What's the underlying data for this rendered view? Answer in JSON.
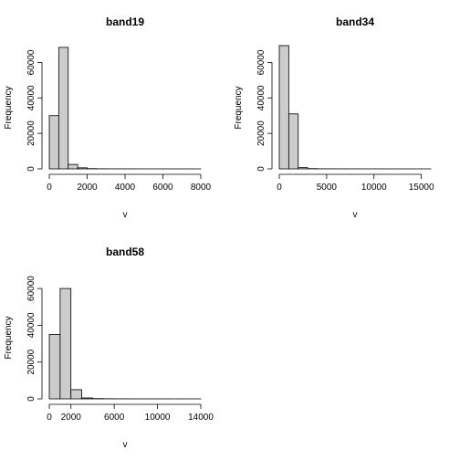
{
  "chart_data": [
    {
      "type": "bar",
      "title": "band19",
      "xlabel": "v",
      "ylabel": "Frequency",
      "bin_edges": [
        0,
        500,
        1000,
        1500,
        2000,
        2500,
        3000,
        3500,
        4000,
        4500,
        5000,
        5500,
        6000,
        6500,
        7000,
        7500,
        8000
      ],
      "values": [
        30000,
        68500,
        2500,
        600,
        150,
        60,
        40,
        30,
        20,
        15,
        10,
        8,
        6,
        5,
        4,
        3
      ],
      "xticks": [
        0,
        2000,
        4000,
        6000,
        8000
      ],
      "yticks": [
        0,
        20000,
        40000,
        60000
      ],
      "xlim": [
        0,
        8000
      ],
      "ylim": [
        0,
        70000
      ],
      "grid": false
    },
    {
      "type": "bar",
      "title": "band34",
      "xlabel": "v",
      "ylabel": "Frequency",
      "bin_edges": [
        0,
        1000,
        2000,
        3000,
        4000,
        5000,
        6000,
        7000,
        8000,
        9000,
        10000,
        11000,
        12000,
        13000,
        14000,
        15000,
        16000
      ],
      "values": [
        69500,
        31000,
        700,
        150,
        60,
        40,
        30,
        20,
        15,
        10,
        8,
        6,
        5,
        4,
        3,
        2
      ],
      "xticks": [
        0,
        5000,
        10000,
        15000
      ],
      "yticks": [
        0,
        20000,
        40000,
        60000
      ],
      "xlim": [
        0,
        16000
      ],
      "ylim": [
        0,
        70000
      ],
      "grid": false
    },
    {
      "type": "bar",
      "title": "band58",
      "xlabel": "v",
      "ylabel": "Frequency",
      "bin_edges": [
        0,
        1000,
        2000,
        3000,
        4000,
        5000,
        6000,
        7000,
        8000,
        9000,
        10000,
        11000,
        12000,
        13000,
        14000
      ],
      "values": [
        35000,
        60000,
        5000,
        500,
        150,
        60,
        40,
        30,
        20,
        15,
        10,
        8,
        6,
        4
      ],
      "xticks": [
        0,
        2000,
        6000,
        10000,
        14000
      ],
      "yticks": [
        0,
        20000,
        40000,
        60000
      ],
      "xlim": [
        0,
        14000
      ],
      "ylim": [
        0,
        65000
      ],
      "grid": false
    }
  ]
}
